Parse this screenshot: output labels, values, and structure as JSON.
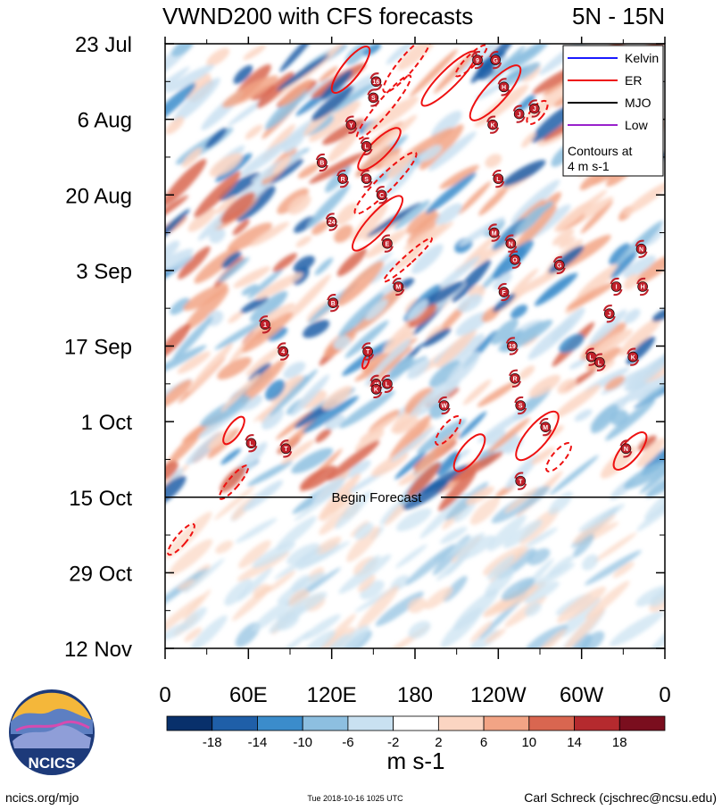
{
  "chart_data": {
    "type": "heatmap",
    "title": "VWND200 with CFS forecasts",
    "region": "5N - 15N",
    "y_ticks": [
      "23 Jul",
      "6 Aug",
      "20 Aug",
      "3 Sep",
      "17 Sep",
      "1 Oct",
      "15 Oct",
      "29 Oct",
      "12 Nov"
    ],
    "x_ticks": [
      "0",
      "60E",
      "120E",
      "180",
      "120W",
      "60W",
      "0"
    ],
    "x_range_deg": [
      0,
      360
    ],
    "y_range": [
      "23 Jul",
      "12 Nov"
    ],
    "forecast_start": "15 Oct",
    "forecast_label": "Begin Forecast",
    "colorbar": {
      "labels": [
        "-18",
        "-14",
        "-10",
        "-6",
        "-2",
        "2",
        "6",
        "10",
        "14",
        "18"
      ],
      "colors": [
        "#08306b",
        "#1f5fa8",
        "#3b8ccb",
        "#8dbfe0",
        "#c9e1f1",
        "#ffffff",
        "#fbd5c2",
        "#f2a485",
        "#d96650",
        "#b52a2e",
        "#7a0e1e"
      ],
      "unit": "m s-1"
    },
    "legend": {
      "items": [
        {
          "label": "Kelvin",
          "color": "#1a1aff"
        },
        {
          "label": "ER",
          "color": "#ee1111"
        },
        {
          "label": "MJO",
          "color": "#000000"
        },
        {
          "label": "Low",
          "color": "#9922cc"
        }
      ],
      "note_line1": "Contours at",
      "note_line2": "4 m s-1"
    },
    "storms": [
      {
        "id": "9",
        "lon": 225,
        "day": 3
      },
      {
        "id": "G",
        "lon": 238,
        "day": 3
      },
      {
        "id": "16",
        "lon": 152,
        "day": 7
      },
      {
        "id": "H",
        "lon": 244,
        "day": 8
      },
      {
        "id": "S",
        "lon": 150,
        "day": 10
      },
      {
        "id": "J",
        "lon": 255,
        "day": 13
      },
      {
        "id": "J",
        "lon": 266,
        "day": 12
      },
      {
        "id": "Y",
        "lon": 134,
        "day": 15
      },
      {
        "id": "K",
        "lon": 236,
        "day": 15
      },
      {
        "id": "L",
        "lon": 145,
        "day": 19
      },
      {
        "id": "B",
        "lon": 113,
        "day": 22
      },
      {
        "id": "S",
        "lon": 145,
        "day": 25
      },
      {
        "id": "R",
        "lon": 128,
        "day": 25
      },
      {
        "id": "L",
        "lon": 240,
        "day": 25
      },
      {
        "id": "C",
        "lon": 156,
        "day": 28
      },
      {
        "id": "24",
        "lon": 120,
        "day": 33
      },
      {
        "id": "M",
        "lon": 237,
        "day": 35
      },
      {
        "id": "E",
        "lon": 160,
        "day": 37
      },
      {
        "id": "N",
        "lon": 249,
        "day": 37
      },
      {
        "id": "N",
        "lon": 343,
        "day": 38
      },
      {
        "id": "O",
        "lon": 252,
        "day": 40
      },
      {
        "id": "G",
        "lon": 284,
        "day": 41
      },
      {
        "id": "M",
        "lon": 168,
        "day": 45
      },
      {
        "id": "F",
        "lon": 244,
        "day": 46
      },
      {
        "id": "I",
        "lon": 325,
        "day": 45
      },
      {
        "id": "H",
        "lon": 344,
        "day": 45
      },
      {
        "id": "B",
        "lon": 121,
        "day": 48
      },
      {
        "id": "J",
        "lon": 320,
        "day": 50
      },
      {
        "id": "1",
        "lon": 72,
        "day": 52
      },
      {
        "id": "4",
        "lon": 85,
        "day": 57
      },
      {
        "id": "T",
        "lon": 146,
        "day": 57
      },
      {
        "id": "19",
        "lon": 250,
        "day": 56
      },
      {
        "id": "L",
        "lon": 307,
        "day": 58
      },
      {
        "id": "L",
        "lon": 313,
        "day": 59
      },
      {
        "id": "K",
        "lon": 337,
        "day": 58
      },
      {
        "id": "26",
        "lon": 152,
        "day": 63
      },
      {
        "id": "L",
        "lon": 160,
        "day": 63
      },
      {
        "id": "K",
        "lon": 152,
        "day": 64
      },
      {
        "id": "R",
        "lon": 252,
        "day": 62
      },
      {
        "id": "W",
        "lon": 201,
        "day": 67
      },
      {
        "id": "S",
        "lon": 256,
        "day": 67
      },
      {
        "id": "M",
        "lon": 274,
        "day": 71
      },
      {
        "id": "L",
        "lon": 62,
        "day": 74
      },
      {
        "id": "T",
        "lon": 87,
        "day": 75
      },
      {
        "id": "N",
        "lon": 332,
        "day": 75
      },
      {
        "id": "T",
        "lon": 256,
        "day": 81
      }
    ]
  },
  "footer": {
    "left": "ncics.org/mjo",
    "center": "Tue 2018-10-16 1025 UTC",
    "right": "Carl Schreck (cjschrec@ncsu.edu)",
    "logo_text": "NCICS"
  },
  "colors": {
    "er_contour": "#ee1111",
    "storm_marker": "#c0202a"
  }
}
